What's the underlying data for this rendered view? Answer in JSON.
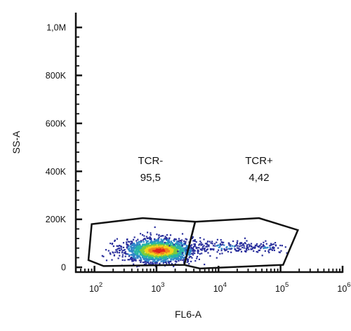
{
  "chart_data": {
    "type": "scatter",
    "subtype": "flow-cytometry-density-dot-plot",
    "title": "",
    "xlabel": "FL6-A",
    "ylabel": "SS-A",
    "x_scale": "log",
    "xlim": [
      50,
      1000000
    ],
    "ylim": [
      -20000,
      1050000
    ],
    "x_ticks": [
      {
        "base": "10",
        "exp": "2",
        "value": 100
      },
      {
        "base": "10",
        "exp": "3",
        "value": 1000
      },
      {
        "base": "10",
        "exp": "4",
        "value": 10000
      },
      {
        "base": "10",
        "exp": "5",
        "value": 100000
      },
      {
        "base": "10",
        "exp": "6",
        "value": 1000000
      }
    ],
    "y_ticks": [
      {
        "label": "0",
        "value": 0
      },
      {
        "label": "200K",
        "value": 200000
      },
      {
        "label": "400K",
        "value": 400000
      },
      {
        "label": "600K",
        "value": 600000
      },
      {
        "label": "800K",
        "value": 800000
      },
      {
        "label": "1,0M",
        "value": 1000000
      }
    ],
    "gates": [
      {
        "name": "TCR-",
        "percent": "95,5",
        "polygon": [
          [
            90,
            180000
          ],
          [
            600,
            205000
          ],
          [
            4200,
            190000
          ],
          [
            2800,
            10000
          ],
          [
            140,
            5000
          ],
          [
            80,
            30000
          ]
        ],
        "label_at": [
          800,
          430000
        ]
      },
      {
        "name": "TCR+",
        "percent": "4,42",
        "polygon": [
          [
            4200,
            190000
          ],
          [
            45000,
            205000
          ],
          [
            190000,
            155000
          ],
          [
            110000,
            10000
          ],
          [
            5000,
            -5000
          ],
          [
            2800,
            10000
          ]
        ],
        "label_at": [
          45000,
          430000
        ]
      }
    ],
    "populations": [
      {
        "gate": "TCR-",
        "center_x": 1100,
        "center_y": 70000,
        "spread_log_x": 0.28,
        "spread_y": 25000,
        "events": 1900
      },
      {
        "gate": "TCR+",
        "center_x": 12000,
        "center_y": 85000,
        "spread_log_x": 0.35,
        "spread_y": 14000,
        "events": 160
      },
      {
        "gate": "TCR+",
        "center_x": 60000,
        "center_y": 82000,
        "spread_log_x": 0.15,
        "spread_y": 10000,
        "events": 60
      }
    ],
    "density_colors": [
      "#2a2f9c",
      "#2e86c8",
      "#27b5a6",
      "#7dcc3a",
      "#f2d21b",
      "#f0831d",
      "#e0201f"
    ],
    "gate_stroke": "#111111"
  }
}
